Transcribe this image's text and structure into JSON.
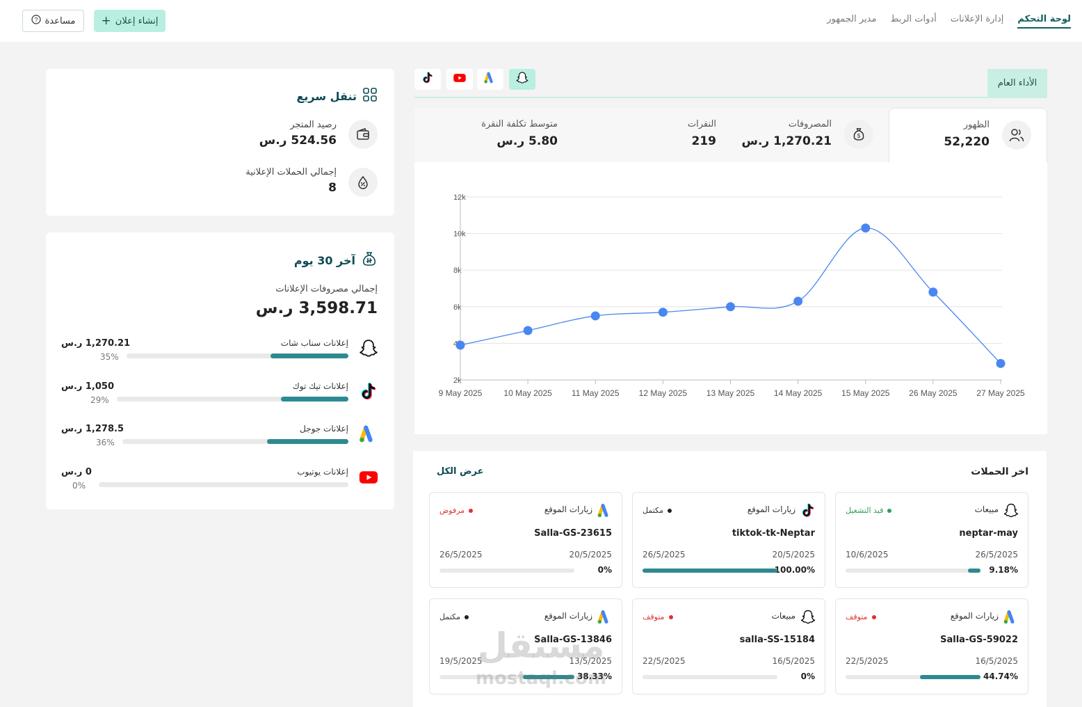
{
  "nav": {
    "items": [
      {
        "label": "لوحة التحكم",
        "active": true
      },
      {
        "label": "إدارة الإعلانات",
        "active": false
      },
      {
        "label": "أدوات الربط",
        "active": false
      },
      {
        "label": "مدير الجمهور",
        "active": false
      }
    ],
    "help_label": "مساعدة",
    "create_label": "إنشاء إعلان"
  },
  "quick_nav": {
    "title": "تنقل سريع",
    "store_balance_label": "رصيد المتجر",
    "store_balance_value": "524.56 ر.س",
    "total_campaigns_label": "إجمالي الحملات الإعلانية",
    "total_campaigns_value": "8"
  },
  "last30": {
    "title": "آخر 30 يوم",
    "total_label": "إجمالي مصروفات الإعلانات",
    "total_value": "3,598.71 ر.س",
    "platforms": [
      {
        "name": "إعلانات سناب شات",
        "amount": "1,270.21 ر.س",
        "percent_label": "35%",
        "percent": 35,
        "icon": "snapchat-icon"
      },
      {
        "name": "إعلانات تيك توك",
        "amount": "1,050 ر.س",
        "percent_label": "29%",
        "percent": 29,
        "icon": "tiktok-icon"
      },
      {
        "name": "إعلانات جوجل",
        "amount": "1,278.5 ر.س",
        "percent_label": "36%",
        "percent": 36,
        "icon": "google-ads-icon"
      },
      {
        "name": "إعلانات يوتيوب",
        "amount": "0 ر.س",
        "percent_label": "0%",
        "percent": 0,
        "icon": "youtube-icon"
      }
    ]
  },
  "performance": {
    "general_tab_label": "الأداء العام",
    "platform_tabs": [
      {
        "icon": "snapchat-icon",
        "selected": true
      },
      {
        "icon": "google-ads-icon",
        "selected": false
      },
      {
        "icon": "youtube-icon",
        "selected": false
      },
      {
        "icon": "tiktok-icon",
        "selected": false
      }
    ],
    "metrics": [
      {
        "label": "الظهور",
        "value": "52,220",
        "icon": "users-icon",
        "active": true
      },
      {
        "label": "المصروفات",
        "value": "1,270.21 ر.س",
        "icon": "money-bag-icon",
        "active": false
      },
      {
        "label": "النقرات",
        "value": "219",
        "active": false
      },
      {
        "label": "متوسط تكلفة النقرة",
        "value": "5.80 ر.س",
        "active": false
      }
    ]
  },
  "chart_data": {
    "type": "line",
    "categories": [
      "9 May 2025",
      "10 May 2025",
      "11 May 2025",
      "12 May 2025",
      "13 May 2025",
      "14 May 2025",
      "15 May 2025",
      "26 May 2025",
      "27 May 2025"
    ],
    "values": [
      3900,
      4700,
      5500,
      5700,
      6000,
      6300,
      10300,
      6800,
      2900
    ],
    "ylim": [
      2000,
      12000
    ],
    "yticks": [
      "2k",
      "4k",
      "6k",
      "8k",
      "10k",
      "12k"
    ],
    "grid": true,
    "color": "#4a86f0"
  },
  "campaigns": {
    "title": "اخر الحملات",
    "view_all_label": "عرض الكل",
    "items": [
      {
        "name": "neptar-may",
        "objective": "مبيعات",
        "status": "قيد التشغيل",
        "status_color": "#2e9e5b",
        "start": "26/5/2025",
        "end": "10/6/2025",
        "progress_label": "9.18%",
        "progress": 9.18,
        "icon": "snapchat-icon"
      },
      {
        "name": "tiktok-tk-Neptar",
        "objective": "زيارات الموقع",
        "status": "مكتمل",
        "status_color": "#222222",
        "start": "20/5/2025",
        "end": "26/5/2025",
        "progress_label": "100.00%",
        "progress": 100,
        "icon": "tiktok-icon"
      },
      {
        "name": "Salla-GS-23615",
        "objective": "زيارات الموقع",
        "status": "مرفوض",
        "status_color": "#e03131",
        "start": "20/5/2025",
        "end": "26/5/2025",
        "progress_label": "0%",
        "progress": 0,
        "icon": "google-ads-icon"
      },
      {
        "name": "Salla-GS-59022",
        "objective": "زيارات الموقع",
        "status": "متوقف",
        "status_color": "#e03131",
        "start": "16/5/2025",
        "end": "22/5/2025",
        "progress_label": "44.74%",
        "progress": 44.74,
        "icon": "google-ads-icon"
      },
      {
        "name": "salla-SS-15184",
        "objective": "مبيعات",
        "status": "متوقف",
        "status_color": "#e03131",
        "start": "16/5/2025",
        "end": "22/5/2025",
        "progress_label": "0%",
        "progress": 0,
        "icon": "snapchat-icon"
      },
      {
        "name": "Salla-GS-13846",
        "objective": "زيارات الموقع",
        "status": "مكتمل",
        "status_color": "#222222",
        "start": "13/5/2025",
        "end": "19/5/2025",
        "progress_label": "38.33%",
        "progress": 38.33,
        "icon": "google-ads-icon"
      }
    ]
  },
  "watermark": {
    "line1": "مستقل",
    "line2": "mostaql.com"
  }
}
